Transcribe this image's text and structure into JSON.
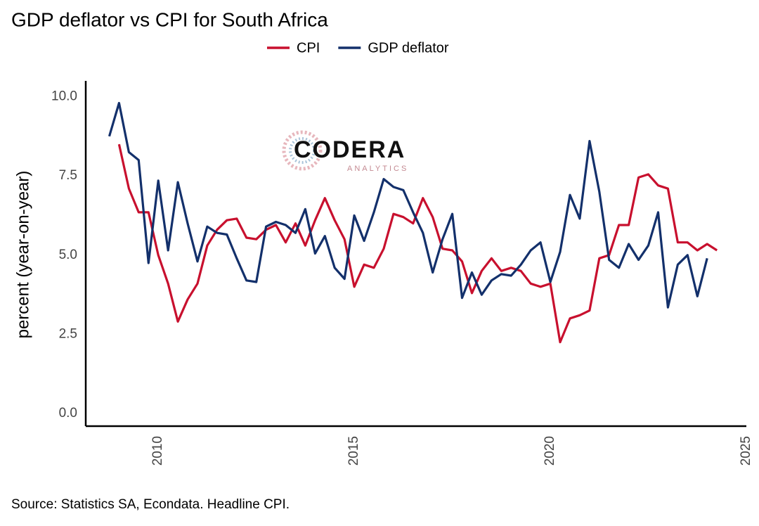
{
  "chart_data": {
    "type": "line",
    "title": "GDP deflator vs CPI for South Africa",
    "y_label": "percent (year-on-year)",
    "caption": "Source: Statistics SA, Econdata. Headline CPI.",
    "logo": {
      "name": "CODERA",
      "tagline": "ANALYTICS"
    },
    "legend": "top",
    "grid": false,
    "xlim": [
      2008.15,
      2025
    ],
    "xticks": [
      2010,
      2015,
      2020,
      2025
    ],
    "ylim": [
      -0.4,
      10.5
    ],
    "yticks": [
      {
        "value": 0,
        "label": "0.0"
      },
      {
        "value": 2.5,
        "label": "2.5"
      },
      {
        "value": 5,
        "label": "5.0"
      },
      {
        "value": 7.5,
        "label": "7.5"
      },
      {
        "value": 10,
        "label": "10.0"
      }
    ],
    "series": [
      {
        "name": "CPI",
        "color": "#c8102e",
        "x": [
          2009,
          2009.25,
          2009.5,
          2009.75,
          2010,
          2010.25,
          2010.5,
          2010.75,
          2011,
          2011.25,
          2011.5,
          2011.75,
          2012,
          2012.25,
          2012.5,
          2012.75,
          2013,
          2013.25,
          2013.5,
          2013.75,
          2014,
          2014.25,
          2014.5,
          2014.75,
          2015,
          2015.25,
          2015.5,
          2015.75,
          2016,
          2016.25,
          2016.5,
          2016.75,
          2017,
          2017.25,
          2017.5,
          2017.75,
          2018,
          2018.25,
          2018.5,
          2018.75,
          2019,
          2019.25,
          2019.5,
          2019.75,
          2020,
          2020.25,
          2020.5,
          2020.75,
          2021,
          2021.25,
          2021.5,
          2021.75,
          2022,
          2022.25,
          2022.5,
          2022.75,
          2023,
          2023.25,
          2023.5,
          2023.75,
          2024,
          2024.25
        ],
        "values": [
          8.5,
          7.1,
          6.35,
          6.35,
          5.0,
          4.1,
          2.9,
          3.6,
          4.1,
          5.3,
          5.8,
          6.1,
          6.15,
          5.55,
          5.5,
          5.8,
          5.95,
          5.4,
          6.0,
          5.3,
          6.1,
          6.8,
          6.1,
          5.5,
          4.0,
          4.7,
          4.6,
          5.2,
          6.3,
          6.2,
          6.0,
          6.8,
          6.2,
          5.2,
          5.15,
          4.8,
          3.8,
          4.5,
          4.9,
          4.5,
          4.6,
          4.5,
          4.1,
          4.0,
          4.1,
          2.25,
          3.0,
          3.1,
          3.25,
          4.9,
          5.0,
          5.95,
          5.95,
          7.45,
          7.55,
          7.2,
          7.1,
          5.4,
          5.4,
          5.15,
          5.35,
          5.15
        ]
      },
      {
        "name": "GDP deflator",
        "color": "#13306b",
        "x": [
          2008.75,
          2009,
          2009.25,
          2009.5,
          2009.75,
          2010,
          2010.25,
          2010.5,
          2010.75,
          2011,
          2011.25,
          2011.5,
          2011.75,
          2012,
          2012.25,
          2012.5,
          2012.75,
          2013,
          2013.25,
          2013.5,
          2013.75,
          2014,
          2014.25,
          2014.5,
          2014.75,
          2015,
          2015.25,
          2015.5,
          2015.75,
          2016,
          2016.25,
          2016.5,
          2016.75,
          2017,
          2017.25,
          2017.5,
          2017.75,
          2018,
          2018.25,
          2018.5,
          2018.75,
          2019,
          2019.25,
          2019.5,
          2019.75,
          2020,
          2020.25,
          2020.5,
          2020.75,
          2021,
          2021.25,
          2021.5,
          2021.75,
          2022,
          2022.25,
          2022.5,
          2022.75,
          2023,
          2023.25,
          2023.5,
          2023.75,
          2024
        ],
        "values": [
          8.75,
          9.8,
          8.25,
          8.0,
          4.75,
          7.35,
          5.15,
          7.3,
          6.0,
          4.8,
          5.9,
          5.7,
          5.65,
          4.9,
          4.2,
          4.15,
          5.9,
          6.05,
          5.95,
          5.7,
          6.45,
          5.05,
          5.6,
          4.6,
          4.25,
          6.25,
          5.45,
          6.35,
          7.4,
          7.15,
          7.05,
          6.35,
          5.7,
          4.45,
          5.5,
          6.3,
          3.65,
          4.45,
          3.75,
          4.2,
          4.4,
          4.35,
          4.7,
          5.15,
          5.4,
          4.15,
          5.1,
          6.9,
          6.15,
          8.6,
          7.0,
          4.85,
          4.6,
          5.35,
          4.85,
          5.3,
          6.35,
          3.35,
          4.7,
          5.0,
          3.7,
          4.9
        ]
      }
    ]
  }
}
